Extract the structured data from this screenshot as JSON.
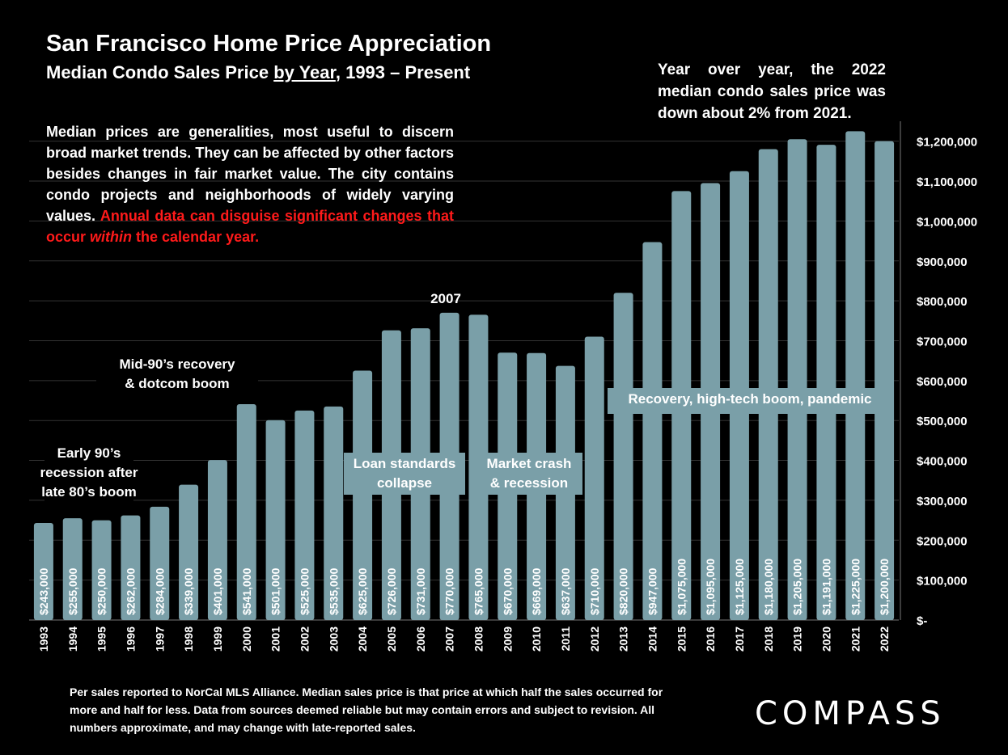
{
  "title": "San Francisco Home Price Appreciation",
  "subtitle_pre": "Median Condo Sales Price ",
  "subtitle_underlined": "by Year",
  "subtitle_post": ", 1993 – Present",
  "note_top": "Year over year, the 2022 median condo sales price was down about 2% from 2021.",
  "note_left_white_1": "Median prices are generalities, most useful to discern broad market trends. They can be affected by other factors besides changes in fair market value. The city contains condo projects and neighborhoods of widely varying values. ",
  "note_left_red_1": "Annual data can disguise significant changes that occur ",
  "note_left_red_italic": "within",
  "note_left_red_2": " the calendar year.",
  "footer": "Per sales reported to NorCal MLS Alliance. Median sales price is that price at which half the sales occurred for more and half for less. Data from sources deemed reliable but may contain errors and subject to revision. All numbers approximate, and may change with late-reported sales.",
  "logo": "COMPASS",
  "colors": {
    "bar": "#7a9fa8",
    "background": "#000000",
    "accent_red": "#ff1a1a",
    "grid": "#333333"
  },
  "chart_data": {
    "type": "bar",
    "categories": [
      "1993",
      "1994",
      "1995",
      "1996",
      "1997",
      "1998",
      "1999",
      "2000",
      "2001",
      "2002",
      "2003",
      "2004",
      "2005",
      "2006",
      "2007",
      "2008",
      "2009",
      "2010",
      "2011",
      "2012",
      "2013",
      "2014",
      "2015",
      "2016",
      "2017",
      "2018",
      "2019",
      "2020",
      "2021",
      "2022"
    ],
    "values": [
      243000,
      255000,
      250000,
      262000,
      284000,
      339000,
      401000,
      541000,
      501000,
      525000,
      535000,
      625000,
      726000,
      731000,
      770000,
      765000,
      670000,
      669000,
      637000,
      710000,
      820000,
      947000,
      1075000,
      1095000,
      1125000,
      1180000,
      1205000,
      1191000,
      1225000,
      1200000
    ],
    "data_labels": [
      "$243,000",
      "$255,000",
      "$250,000",
      "$262,000",
      "$284,000",
      "$339,000",
      "$401,000",
      "$541,000",
      "$501,000",
      "$525,000",
      "$535,000",
      "$625,000",
      "$726,000",
      "$731,000",
      "$770,000",
      "$765,000",
      "$670,000",
      "$669,000",
      "$637,000",
      "$710,000",
      "$820,000",
      "$947,000",
      "$1,075,000",
      "$1,095,000",
      "$1,125,000",
      "$1,180,000",
      "$1,205,000",
      "$1,191,000",
      "$1,225,000",
      "$1,200,000"
    ],
    "ylim": [
      0,
      1250000
    ],
    "yticks": [
      0,
      100000,
      200000,
      300000,
      400000,
      500000,
      600000,
      700000,
      800000,
      900000,
      1000000,
      1100000,
      1200000
    ],
    "ytick_labels": [
      "$-",
      "$100,000",
      "$200,000",
      "$300,000",
      "$400,000",
      "$500,000",
      "$600,000",
      "$700,000",
      "$800,000",
      "$900,000",
      "$1,000,000",
      "$1,100,000",
      "$1,200,000"
    ],
    "y_axis_side": "right",
    "grid": true,
    "annotations": [
      {
        "lines": [
          "Early 90’s",
          "recession after",
          "late 80’s boom"
        ],
        "style": "dark-box"
      },
      {
        "lines": [
          "Mid-90’s recovery",
          "& dotcom boom"
        ],
        "style": "dark-box"
      },
      {
        "lines": [
          "2007"
        ],
        "style": "text"
      },
      {
        "lines": [
          "Loan standards",
          "collapse"
        ],
        "style": "light-box"
      },
      {
        "lines": [
          "Market crash",
          "& recession"
        ],
        "style": "light-box"
      },
      {
        "lines": [
          "Recovery, high-tech boom, pandemic"
        ],
        "style": "light-box"
      }
    ]
  }
}
